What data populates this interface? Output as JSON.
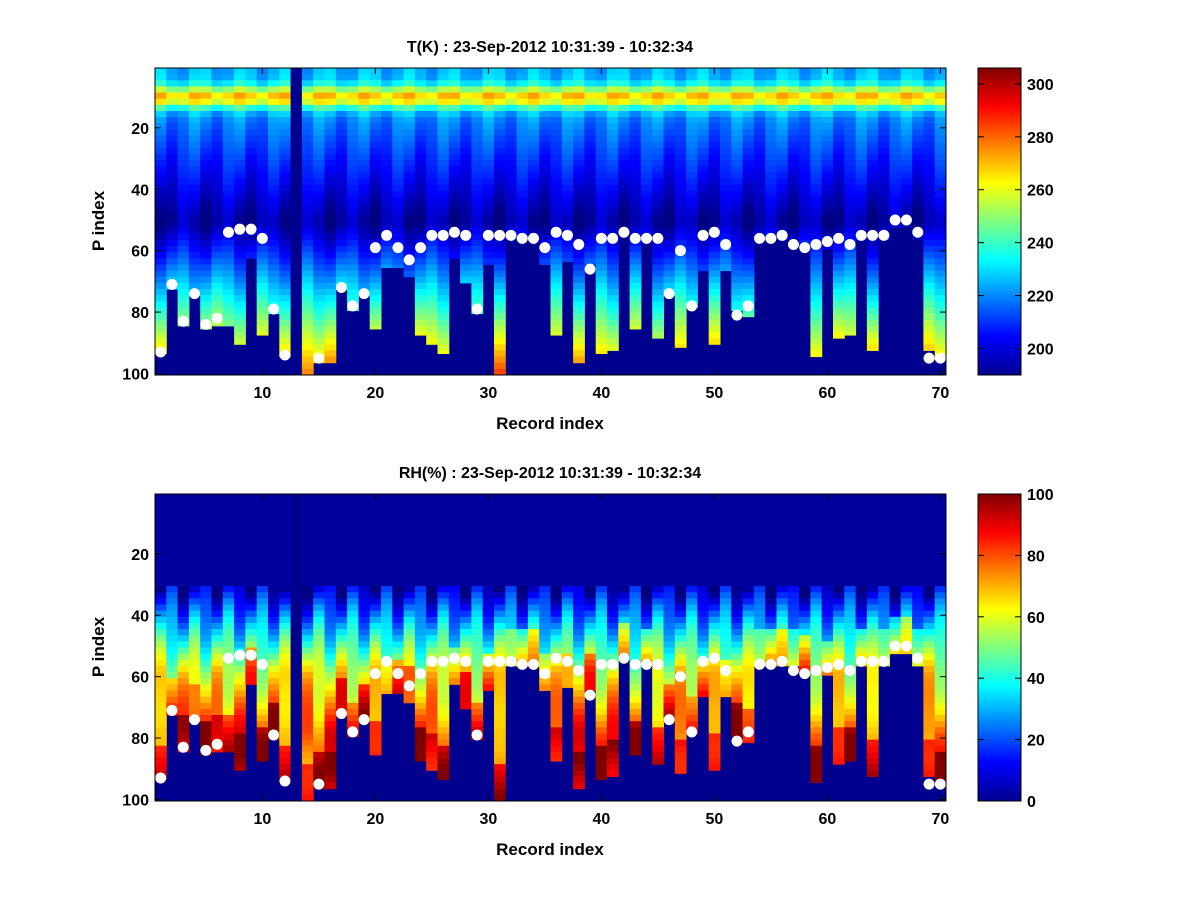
{
  "chart_data": [
    {
      "type": "heatmap",
      "title": "T(K) : 23-Sep-2012 10:31:39 - 10:32:34",
      "xlabel": "Record index",
      "ylabel": "P index",
      "xlim": [
        0.5,
        70.5
      ],
      "ylim": [
        100,
        1
      ],
      "y_reversed": true,
      "x_ticks": [
        10,
        20,
        30,
        40,
        50,
        60,
        70
      ],
      "y_ticks": [
        20,
        40,
        60,
        80,
        100
      ],
      "colormap": "jet",
      "colorbar": {
        "range": [
          190,
          306
        ],
        "ticks": [
          200,
          220,
          240,
          260,
          280,
          300
        ]
      },
      "masked_record": 13,
      "mask_color": "#00008f",
      "profile_bottom": [
        93,
        72,
        84,
        74,
        85,
        84,
        84,
        90,
        62,
        87,
        80,
        94,
        100,
        100,
        96,
        96,
        72,
        79,
        74,
        85,
        65,
        65,
        68,
        87,
        90,
        93,
        62,
        70,
        80,
        64,
        100,
        56,
        56,
        56,
        64,
        87,
        63,
        96,
        64,
        93,
        92,
        53,
        85,
        55,
        88,
        74,
        91,
        78,
        66,
        90,
        66,
        79,
        81,
        56,
        56,
        56,
        56,
        58,
        94,
        59,
        88,
        87,
        56,
        92,
        56,
        52,
        52,
        56,
        92,
        95
      ],
      "markers": {
        "x": [
          1,
          2,
          3,
          4,
          5,
          6,
          7,
          8,
          9,
          10,
          11,
          12,
          15,
          17,
          18,
          19,
          20,
          21,
          22,
          23,
          24,
          25,
          26,
          27,
          28,
          29,
          30,
          31,
          32,
          33,
          34,
          35,
          36,
          37,
          38,
          39,
          40,
          41,
          42,
          43,
          44,
          45,
          46,
          47,
          48,
          49,
          50,
          51,
          52,
          53,
          54,
          55,
          56,
          57,
          58,
          59,
          60,
          61,
          62,
          63,
          64,
          65,
          66,
          67,
          68,
          69,
          70
        ],
        "y": [
          93,
          71,
          83,
          74,
          84,
          82,
          54,
          53,
          53,
          56,
          79,
          94,
          95,
          72,
          78,
          74,
          59,
          55,
          59,
          63,
          59,
          55,
          55,
          54,
          55,
          79,
          55,
          55,
          55,
          56,
          56,
          59,
          54,
          55,
          58,
          66,
          56,
          56,
          54,
          56,
          56,
          56,
          74,
          60,
          78,
          55,
          54,
          58,
          81,
          78,
          56,
          56,
          55,
          58,
          59,
          58,
          57,
          56,
          58,
          55,
          55,
          55,
          50,
          50,
          54,
          95,
          95
        ],
        "color": "#ffffff"
      }
    },
    {
      "type": "heatmap",
      "title": "RH(%) : 23-Sep-2012 10:31:39 - 10:32:34",
      "xlabel": "Record index",
      "ylabel": "P index",
      "xlim": [
        0.5,
        70.5
      ],
      "ylim": [
        100,
        1
      ],
      "y_reversed": true,
      "x_ticks": [
        10,
        20,
        30,
        40,
        50,
        60,
        70
      ],
      "y_ticks": [
        20,
        40,
        60,
        80,
        100
      ],
      "colormap": "jet",
      "colorbar": {
        "range": [
          0,
          100
        ],
        "ticks": [
          0,
          20,
          40,
          60,
          80,
          100
        ]
      },
      "masked_record": 13,
      "mask_color": "#00008f",
      "profile_bottom": [
        93,
        72,
        84,
        74,
        85,
        84,
        84,
        90,
        62,
        87,
        80,
        94,
        100,
        100,
        96,
        96,
        72,
        79,
        74,
        85,
        65,
        65,
        68,
        87,
        90,
        93,
        62,
        70,
        80,
        64,
        100,
        56,
        56,
        56,
        64,
        87,
        63,
        96,
        64,
        93,
        92,
        53,
        85,
        55,
        88,
        74,
        91,
        78,
        66,
        90,
        66,
        79,
        81,
        56,
        56,
        56,
        56,
        58,
        94,
        59,
        88,
        87,
        56,
        92,
        56,
        52,
        52,
        56,
        92,
        95
      ],
      "markers": {
        "x": [
          1,
          2,
          3,
          4,
          5,
          6,
          7,
          8,
          9,
          10,
          11,
          12,
          15,
          17,
          18,
          19,
          20,
          21,
          22,
          23,
          24,
          25,
          26,
          27,
          28,
          29,
          30,
          31,
          32,
          33,
          34,
          35,
          36,
          37,
          38,
          39,
          40,
          41,
          42,
          43,
          44,
          45,
          46,
          47,
          48,
          49,
          50,
          51,
          52,
          53,
          54,
          55,
          56,
          57,
          58,
          59,
          60,
          61,
          62,
          63,
          64,
          65,
          66,
          67,
          68,
          69,
          70
        ],
        "y": [
          93,
          71,
          83,
          74,
          84,
          82,
          54,
          53,
          53,
          56,
          79,
          94,
          95,
          72,
          78,
          74,
          59,
          55,
          59,
          63,
          59,
          55,
          55,
          54,
          55,
          79,
          55,
          55,
          55,
          56,
          56,
          59,
          54,
          55,
          58,
          66,
          56,
          56,
          54,
          56,
          56,
          56,
          74,
          60,
          78,
          55,
          54,
          58,
          81,
          78,
          56,
          56,
          55,
          58,
          59,
          58,
          57,
          56,
          58,
          55,
          55,
          55,
          50,
          50,
          54,
          95,
          95
        ],
        "color": "#ffffff"
      }
    }
  ]
}
